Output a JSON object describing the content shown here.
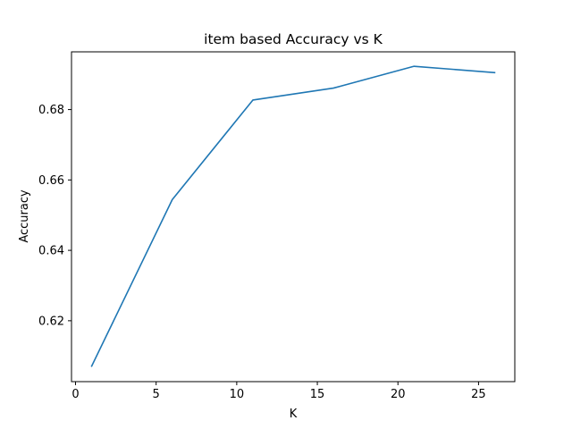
{
  "chart_data": {
    "type": "line",
    "title": "item based Accuracy vs K",
    "xlabel": "K",
    "ylabel": "Accuracy",
    "xlim": [
      -0.25,
      27.25
    ],
    "ylim": [
      0.6027,
      0.6964
    ],
    "xticks": [
      0,
      5,
      10,
      15,
      20,
      25
    ],
    "xtick_labels": [
      "0",
      "5",
      "10",
      "15",
      "20",
      "25"
    ],
    "yticks": [
      0.62,
      0.64,
      0.66,
      0.68
    ],
    "ytick_labels": [
      "0.62",
      "0.64",
      "0.66",
      "0.68"
    ],
    "grid": false,
    "legend": "none",
    "series": [
      {
        "color": "#1f77b4",
        "x": [
          1,
          6,
          11,
          16,
          21,
          26
        ],
        "y": [
          0.6071,
          0.6544,
          0.6827,
          0.6861,
          0.6923,
          0.6905
        ]
      }
    ]
  }
}
